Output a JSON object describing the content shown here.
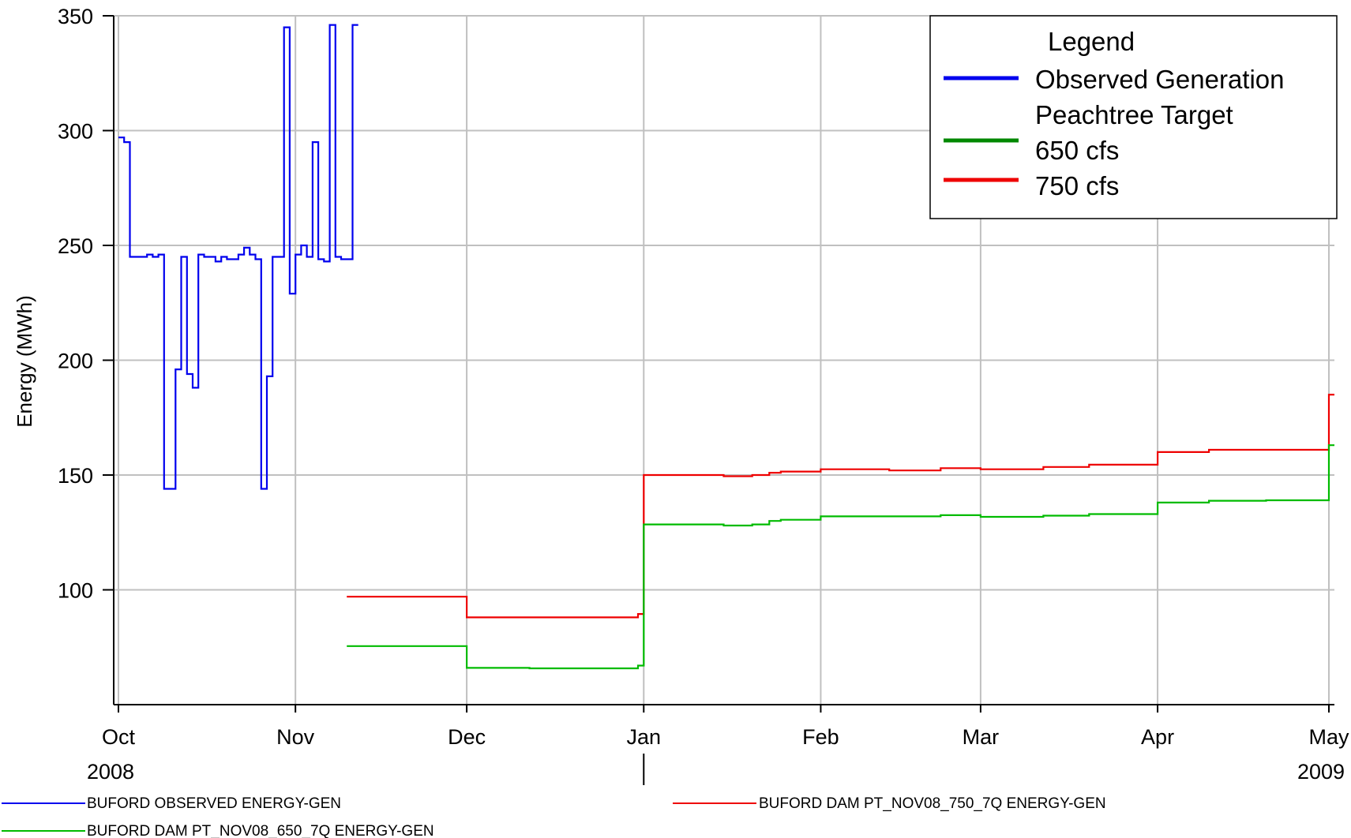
{
  "chart_data": {
    "type": "line",
    "title": "",
    "xlabel": "",
    "ylabel": "Energy (MWh)",
    "ylim": [
      50,
      350
    ],
    "y_ticks": [
      100,
      150,
      200,
      250,
      300,
      350
    ],
    "xlim": [
      "2008-10-01",
      "2009-05-05"
    ],
    "x_ticks": [
      {
        "date": "2008-10-01",
        "label": "Oct"
      },
      {
        "date": "2008-11-01",
        "label": "Nov"
      },
      {
        "date": "2008-12-01",
        "label": "Dec"
      },
      {
        "date": "2009-01-01",
        "label": "Jan"
      },
      {
        "date": "2009-02-01",
        "label": "Feb"
      },
      {
        "date": "2009-03-01",
        "label": "Mar"
      },
      {
        "date": "2009-04-01",
        "label": "Apr"
      },
      {
        "date": "2009-05-01",
        "label": "May"
      }
    ],
    "year_labels": [
      {
        "date": "2008-10-01",
        "label": "2008"
      },
      {
        "date": "2009-05-01",
        "label": "2009"
      }
    ],
    "year_divider_date": "2009-01-01",
    "grid": true,
    "series": [
      {
        "name": "BUFORD OBSERVED ENERGY-GEN",
        "color": "#0000ee",
        "step": true,
        "points": [
          [
            "2008-10-01",
            297
          ],
          [
            "2008-10-02",
            295
          ],
          [
            "2008-10-03",
            245
          ],
          [
            "2008-10-06",
            246
          ],
          [
            "2008-10-07",
            245
          ],
          [
            "2008-10-08",
            246
          ],
          [
            "2008-10-09",
            144
          ],
          [
            "2008-10-11",
            196
          ],
          [
            "2008-10-12",
            245
          ],
          [
            "2008-10-13",
            194
          ],
          [
            "2008-10-14",
            188
          ],
          [
            "2008-10-15",
            246
          ],
          [
            "2008-10-16",
            245
          ],
          [
            "2008-10-18",
            243
          ],
          [
            "2008-10-19",
            245
          ],
          [
            "2008-10-20",
            244
          ],
          [
            "2008-10-22",
            246
          ],
          [
            "2008-10-23",
            249
          ],
          [
            "2008-10-24",
            246
          ],
          [
            "2008-10-25",
            244
          ],
          [
            "2008-10-26",
            144
          ],
          [
            "2008-10-27",
            193
          ],
          [
            "2008-10-28",
            245
          ],
          [
            "2008-10-30",
            345
          ],
          [
            "2008-10-31",
            229
          ],
          [
            "2008-11-01",
            246
          ],
          [
            "2008-11-02",
            250
          ],
          [
            "2008-11-03",
            245
          ],
          [
            "2008-11-04",
            295
          ],
          [
            "2008-11-05",
            244
          ],
          [
            "2008-11-06",
            243
          ],
          [
            "2008-11-07",
            346
          ],
          [
            "2008-11-08",
            245
          ],
          [
            "2008-11-09",
            244
          ],
          [
            "2008-11-11",
            346
          ],
          [
            "2008-11-12",
            346
          ]
        ]
      },
      {
        "name": "BUFORD DAM PT_NOV08_750_7Q ENERGY-GEN",
        "color": "#ee0000",
        "step": true,
        "points": [
          [
            "2008-11-10",
            97
          ],
          [
            "2008-12-01",
            88
          ],
          [
            "2008-12-12",
            88
          ],
          [
            "2008-12-31",
            89.5
          ],
          [
            "2009-01-01",
            150
          ],
          [
            "2009-01-15",
            149.5
          ],
          [
            "2009-01-20",
            150
          ],
          [
            "2009-01-23",
            151
          ],
          [
            "2009-01-25",
            151.5
          ],
          [
            "2009-02-01",
            152.5
          ],
          [
            "2009-02-13",
            152
          ],
          [
            "2009-02-22",
            153
          ],
          [
            "2009-03-01",
            152.5
          ],
          [
            "2009-03-12",
            153.5
          ],
          [
            "2009-03-20",
            154.5
          ],
          [
            "2009-04-01",
            160
          ],
          [
            "2009-04-10",
            161
          ],
          [
            "2009-05-01",
            185
          ],
          [
            "2009-05-05",
            185
          ]
        ]
      },
      {
        "name": "BUFORD DAM PT_NOV08_650_7Q ENERGY-GEN",
        "color": "#00bb00",
        "step": true,
        "points": [
          [
            "2008-11-10",
            75.5
          ],
          [
            "2008-12-01",
            66
          ],
          [
            "2008-12-12",
            65.8
          ],
          [
            "2008-12-31",
            67
          ],
          [
            "2009-01-01",
            128.5
          ],
          [
            "2009-01-15",
            128
          ],
          [
            "2009-01-20",
            128.5
          ],
          [
            "2009-01-23",
            130
          ],
          [
            "2009-01-25",
            130.5
          ],
          [
            "2009-02-01",
            132
          ],
          [
            "2009-02-22",
            132.5
          ],
          [
            "2009-03-01",
            131.8
          ],
          [
            "2009-03-12",
            132.3
          ],
          [
            "2009-03-20",
            133
          ],
          [
            "2009-04-01",
            138
          ],
          [
            "2009-04-10",
            138.8
          ],
          [
            "2009-04-20",
            139
          ],
          [
            "2009-05-01",
            163
          ],
          [
            "2009-05-05",
            163
          ]
        ]
      }
    ],
    "legend": {
      "placement": "top-right",
      "title": "Legend",
      "entries": [
        {
          "label": "Observed Generation",
          "color": "#0000ee"
        },
        {
          "label": "Peachtree Target",
          "color": ""
        },
        {
          "label": "650 cfs",
          "color": "#008800"
        },
        {
          "label": "750 cfs",
          "color": "#ee0000"
        }
      ]
    },
    "bottom_legend": [
      {
        "label": "BUFORD OBSERVED ENERGY-GEN",
        "color": "#0000ee"
      },
      {
        "label": "BUFORD DAM PT_NOV08_750_7Q ENERGY-GEN",
        "color": "#ee0000"
      },
      {
        "label": "BUFORD DAM PT_NOV08_650_7Q ENERGY-GEN",
        "color": "#00bb00"
      }
    ]
  }
}
